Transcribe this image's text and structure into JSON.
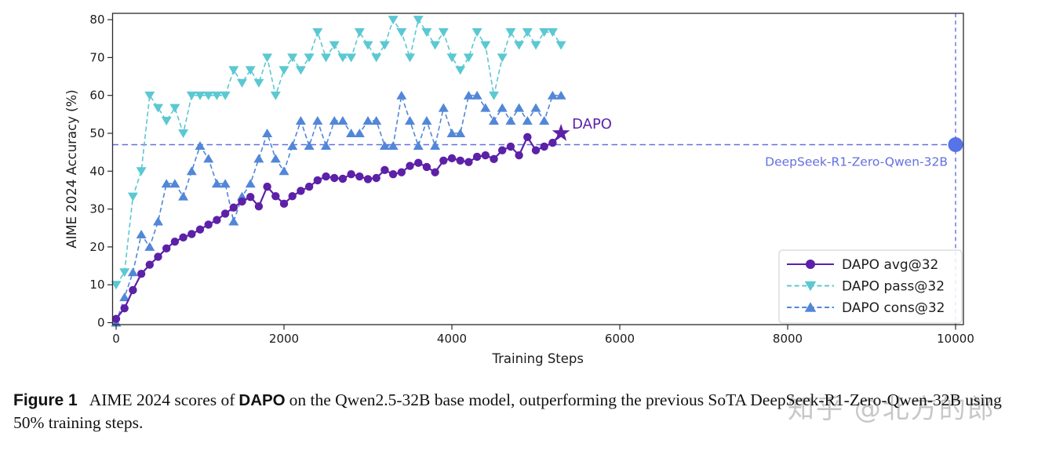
{
  "watermark": {
    "text": "知乎 @北方的郎"
  },
  "caption": {
    "figure_label": "Figure 1",
    "text_before_bold": "AIME 2024 scores of",
    "bold_term": "DAPO",
    "text_after_bold": "on the Qwen2.5-32B base model, outperforming the previous SoTA DeepSeek-R1-Zero-Qwen-32B using 50% training steps."
  },
  "chart_data": {
    "type": "line",
    "title": "",
    "xlabel": "Training Steps",
    "ylabel": "AIME 2024 Accuracy (%)",
    "x_tick_values": [
      0,
      2000,
      4000,
      6000,
      8000,
      10000
    ],
    "y_tick_values": [
      0,
      10,
      20,
      30,
      40,
      50,
      60,
      70,
      80
    ],
    "xlim": [
      -430,
      10100
    ],
    "ylim": [
      -0.7,
      82
    ],
    "grid": false,
    "legend_position": "lower-right",
    "x": [
      0,
      100,
      200,
      300,
      400,
      500,
      600,
      700,
      800,
      900,
      1000,
      1100,
      1200,
      1300,
      1400,
      1500,
      1600,
      1700,
      1800,
      1900,
      2000,
      2100,
      2200,
      2300,
      2400,
      2500,
      2600,
      2700,
      2800,
      2900,
      3000,
      3100,
      3200,
      3300,
      3400,
      3500,
      3600,
      3700,
      3800,
      3900,
      4000,
      4100,
      4200,
      4300,
      4400,
      4500,
      4600,
      4700,
      4800,
      4900,
      5000,
      5100,
      5200,
      5300
    ],
    "series": [
      {
        "name": "DAPO avg@32",
        "color": "#5c21a7",
        "marker": "circle",
        "line_style": "solid",
        "values": [
          1.0,
          3.8,
          8.6,
          12.9,
          15.3,
          17.4,
          19.6,
          21.4,
          22.5,
          23.4,
          24.6,
          25.9,
          27.1,
          28.8,
          30.4,
          32.0,
          33.2,
          30.7,
          35.9,
          33.4,
          31.4,
          33.4,
          34.8,
          35.9,
          37.6,
          38.6,
          38.2,
          38.0,
          39.2,
          38.6,
          37.9,
          38.2,
          40.3,
          39.2,
          39.7,
          41.4,
          42.2,
          41.1,
          39.7,
          42.8,
          43.4,
          42.8,
          42.4,
          43.8,
          44.2,
          43.2,
          45.5,
          46.5,
          44.2,
          49.0,
          45.5,
          46.5,
          47.5,
          50.0
        ]
      },
      {
        "name": "DAPO pass@32",
        "color": "#5bc8d2",
        "marker": "triangle-down",
        "line_style": "dashed",
        "values": [
          10.0,
          13.3,
          33.3,
          40.0,
          60.0,
          56.7,
          53.3,
          56.7,
          50.0,
          60.0,
          60.0,
          60.0,
          60.0,
          60.0,
          66.7,
          63.3,
          66.7,
          63.3,
          70.0,
          60.0,
          66.7,
          70.0,
          66.7,
          70.0,
          76.7,
          70.0,
          73.3,
          70.0,
          70.0,
          76.7,
          73.3,
          70.0,
          73.3,
          80.0,
          76.7,
          70.0,
          80.0,
          76.7,
          73.3,
          76.7,
          70.0,
          66.7,
          70.0,
          76.7,
          73.3,
          60.0,
          70.0,
          76.7,
          73.3,
          76.7,
          73.3,
          76.7,
          76.7,
          73.3
        ]
      },
      {
        "name": "DAPO cons@32",
        "color": "#5287d8",
        "marker": "triangle-up",
        "line_style": "dashed",
        "values": [
          0.0,
          6.7,
          13.3,
          23.3,
          20.0,
          26.7,
          36.7,
          36.7,
          33.3,
          40.0,
          46.7,
          43.3,
          36.7,
          36.7,
          26.7,
          33.3,
          36.7,
          43.3,
          50.0,
          43.3,
          40.0,
          46.7,
          53.3,
          46.7,
          53.3,
          46.7,
          53.3,
          53.3,
          50.0,
          50.0,
          53.3,
          53.3,
          46.7,
          46.7,
          60.0,
          53.3,
          46.7,
          53.3,
          46.7,
          56.7,
          50.0,
          50.0,
          60.0,
          60.0,
          56.7,
          53.3,
          56.7,
          53.3,
          56.7,
          53.3,
          56.7,
          53.3,
          60.0,
          60.0
        ]
      }
    ],
    "annotations": {
      "dapo_star": {
        "label": "DAPO",
        "x": 5300,
        "y": 50,
        "marker": "star",
        "color": "#5c21a7"
      },
      "baseline": {
        "label": "DeepSeek-R1-Zero-Qwen-32B",
        "value": 47,
        "x": 10000,
        "line_color": "#6270e0",
        "dot_color": "#5673e8"
      }
    }
  }
}
